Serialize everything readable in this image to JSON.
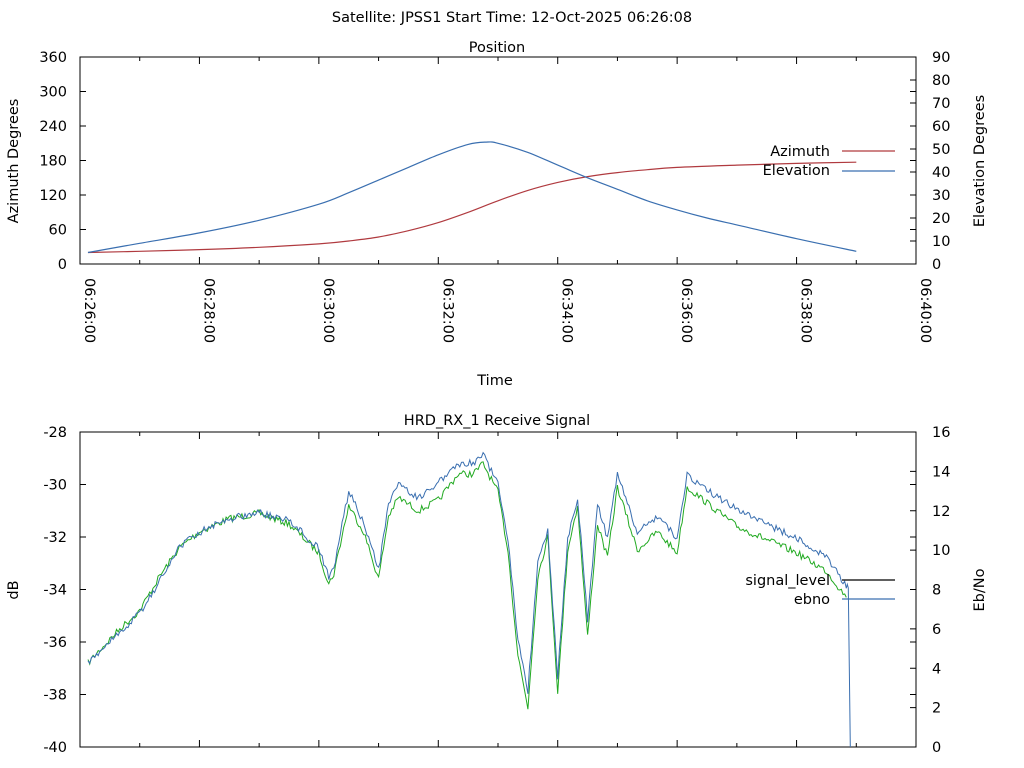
{
  "header": {
    "title": "Satellite: JPSS1    Start Time: 12-Oct-2025 06:26:08"
  },
  "colors": {
    "azimuth": "#b03a3f",
    "elevation": "#3a6fb0",
    "signal_level": "#000000",
    "ebno": "#3a6fb0",
    "signal_line": "#22aa22",
    "axis": "#000000"
  },
  "chart_data": [
    {
      "type": "line",
      "title": "Position",
      "xlabel": "Time",
      "ylabel": "Azimuth Degrees",
      "y2label": "Elevation Degrees",
      "xlim": [
        "06:26:00",
        "06:40:00"
      ],
      "ylim": [
        0,
        360
      ],
      "y2lim": [
        0,
        90
      ],
      "x_ticks": [
        "06:26:00",
        "06:28:00",
        "06:30:00",
        "06:32:00",
        "06:34:00",
        "06:36:00",
        "06:38:00",
        "06:40:00"
      ],
      "y_ticks": [
        0,
        60,
        120,
        180,
        240,
        300,
        360
      ],
      "y2_ticks": [
        0,
        10,
        20,
        30,
        40,
        50,
        60,
        70,
        80,
        90
      ],
      "grid": false,
      "legend_position": "right",
      "series": [
        {
          "name": "Azimuth",
          "axis": "y",
          "x": [
            "06:26:08",
            "06:27:00",
            "06:28:00",
            "06:29:00",
            "06:30:00",
            "06:30:30",
            "06:31:00",
            "06:31:30",
            "06:32:00",
            "06:32:30",
            "06:33:00",
            "06:33:30",
            "06:34:00",
            "06:34:30",
            "06:35:00",
            "06:35:30",
            "06:36:00",
            "06:37:00",
            "06:38:00",
            "06:39:00"
          ],
          "values": [
            20,
            22,
            25,
            29,
            35,
            40,
            47,
            58,
            72,
            90,
            110,
            128,
            142,
            152,
            159,
            164,
            168,
            172,
            175,
            177
          ]
        },
        {
          "name": "Elevation",
          "axis": "y2",
          "x": [
            "06:26:08",
            "06:27:00",
            "06:28:00",
            "06:29:00",
            "06:30:00",
            "06:30:30",
            "06:31:00",
            "06:31:30",
            "06:32:00",
            "06:32:30",
            "06:32:48",
            "06:33:00",
            "06:33:30",
            "06:34:00",
            "06:34:30",
            "06:35:00",
            "06:35:30",
            "06:36:00",
            "06:36:30",
            "06:37:00",
            "06:38:00",
            "06:39:00"
          ],
          "values": [
            5,
            9,
            13.5,
            19,
            26,
            31,
            36.5,
            42,
            47.5,
            52,
            53,
            52.5,
            48.5,
            43,
            37.5,
            32.5,
            27.5,
            23.5,
            20,
            17,
            11,
            5.5
          ]
        }
      ]
    },
    {
      "type": "line",
      "title": "HRD_RX_1 Receive Signal",
      "xlabel": "",
      "ylabel": "dB",
      "y2label": "Eb/No",
      "xlim": [
        "06:26:00",
        "06:40:00"
      ],
      "ylim": [
        -40,
        -28
      ],
      "y2lim": [
        0,
        16
      ],
      "y_ticks": [
        -40,
        -38,
        -36,
        -34,
        -32,
        -30,
        -28
      ],
      "y2_ticks": [
        0,
        2,
        4,
        6,
        8,
        10,
        12,
        14,
        16
      ],
      "grid": false,
      "legend_position": "right",
      "series": [
        {
          "name": "signal_level",
          "axis": "y",
          "color_hint": "green",
          "x": [
            "06:26:08",
            "06:26:20",
            "06:26:40",
            "06:27:00",
            "06:27:20",
            "06:27:40",
            "06:28:00",
            "06:28:30",
            "06:29:00",
            "06:29:30",
            "06:30:00",
            "06:30:10",
            "06:30:15",
            "06:30:30",
            "06:30:45",
            "06:31:00",
            "06:31:10",
            "06:31:20",
            "06:31:40",
            "06:32:00",
            "06:32:20",
            "06:32:35",
            "06:32:45",
            "06:33:00",
            "06:33:10",
            "06:33:20",
            "06:33:30",
            "06:33:40",
            "06:33:50",
            "06:34:00",
            "06:34:10",
            "06:34:20",
            "06:34:30",
            "06:34:40",
            "06:34:50",
            "06:35:00",
            "06:35:20",
            "06:35:40",
            "06:36:00",
            "06:36:10",
            "06:36:20",
            "06:36:40",
            "06:37:00",
            "06:37:30",
            "06:38:00",
            "06:38:30",
            "06:38:50"
          ],
          "values": [
            -36.8,
            -36.3,
            -35.5,
            -34.8,
            -33.5,
            -32.4,
            -31.8,
            -31.3,
            -31.1,
            -31.5,
            -32.6,
            -33.8,
            -33.4,
            -30.8,
            -31.8,
            -33.6,
            -31.2,
            -30.5,
            -31.0,
            -30.6,
            -29.6,
            -29.6,
            -29.2,
            -30.3,
            -32.5,
            -36.5,
            -38.5,
            -33.5,
            -32.0,
            -37.9,
            -32.5,
            -30.8,
            -35.8,
            -31.5,
            -32.8,
            -30.1,
            -32.5,
            -31.8,
            -32.6,
            -30.1,
            -30.4,
            -31.0,
            -31.6,
            -32.1,
            -32.6,
            -33.3,
            -34.3
          ]
        },
        {
          "name": "ebno",
          "axis": "y2",
          "x": [
            "06:26:08",
            "06:26:20",
            "06:26:40",
            "06:27:00",
            "06:27:20",
            "06:27:40",
            "06:28:00",
            "06:28:30",
            "06:29:00",
            "06:29:30",
            "06:30:00",
            "06:30:10",
            "06:30:15",
            "06:30:30",
            "06:30:45",
            "06:31:00",
            "06:31:10",
            "06:31:20",
            "06:31:40",
            "06:32:00",
            "06:32:20",
            "06:32:35",
            "06:32:45",
            "06:33:00",
            "06:33:10",
            "06:33:20",
            "06:33:30",
            "06:33:40",
            "06:33:50",
            "06:34:00",
            "06:34:10",
            "06:34:20",
            "06:34:30",
            "06:34:40",
            "06:34:50",
            "06:35:00",
            "06:35:20",
            "06:35:40",
            "06:36:00",
            "06:36:10",
            "06:36:20",
            "06:36:40",
            "06:37:00",
            "06:37:30",
            "06:38:00",
            "06:38:30",
            "06:38:50",
            "06:38:52",
            "06:38:54"
          ],
          "values": [
            4.2,
            4.9,
            5.8,
            6.8,
            8.4,
            10.2,
            10.9,
            11.6,
            11.9,
            11.5,
            10.1,
            8.6,
            9.1,
            13.0,
            11.4,
            9.0,
            12.3,
            13.3,
            12.6,
            13.4,
            14.4,
            14.4,
            14.9,
            13.3,
            10.5,
            5.5,
            2.8,
            9.5,
            11.0,
            3.6,
            10.5,
            12.7,
            6.5,
            12.3,
            10.6,
            13.9,
            10.9,
            11.7,
            10.6,
            13.9,
            13.4,
            12.7,
            12.1,
            11.3,
            10.6,
            9.6,
            8.2,
            8.0,
            0.0
          ]
        }
      ]
    }
  ]
}
